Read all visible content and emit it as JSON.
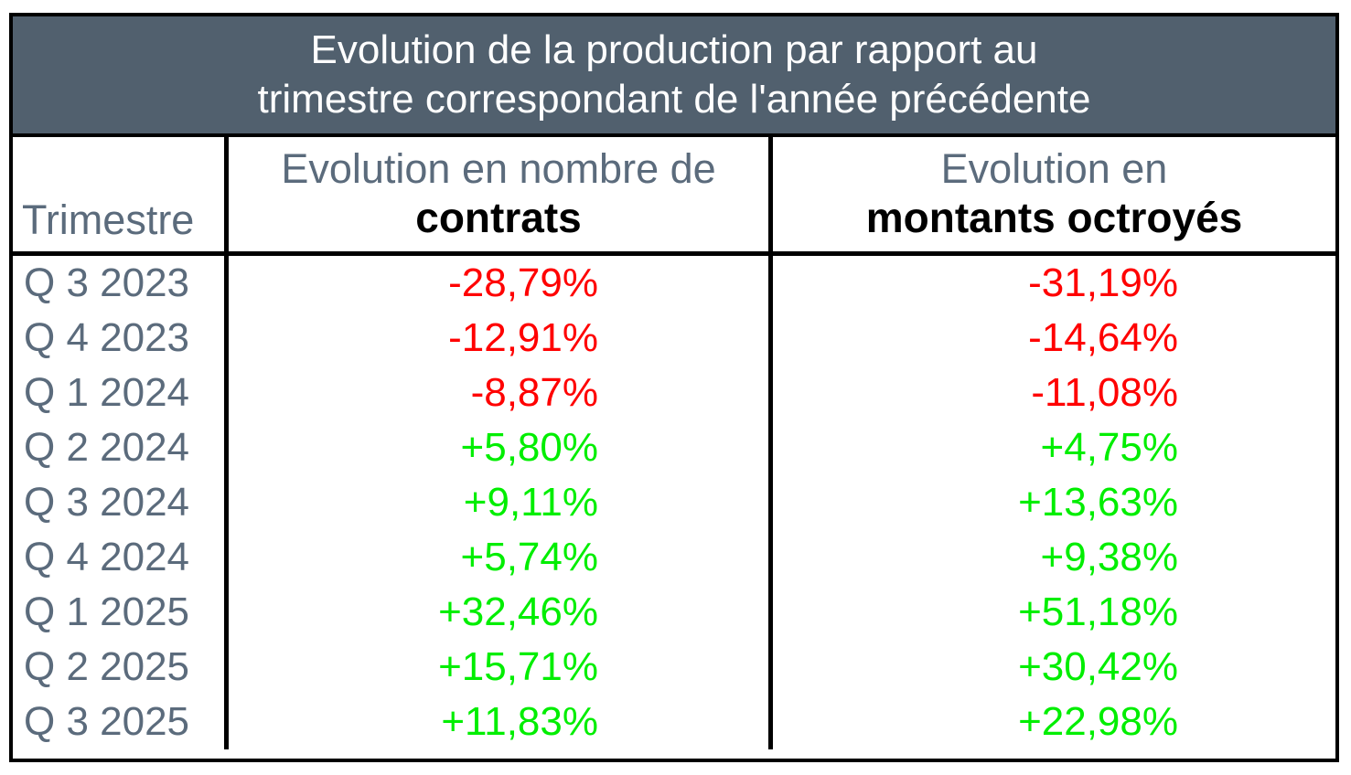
{
  "table": {
    "title_line1": "Evolution de la production par rapport au",
    "title_line2": "trimestre correspondant de l'année précédente",
    "header": {
      "col1": "Trimestre",
      "col2_line1": "Evolution en nombre de",
      "col2_line2": "contrats",
      "col3_line1": "Evolution en",
      "col3_line2": "montants octroyés"
    },
    "rows": [
      {
        "quarter": "Q 3 2023",
        "contracts": "-28,79%",
        "amounts": "-31,19%"
      },
      {
        "quarter": "Q 4 2023",
        "contracts": "-12,91%",
        "amounts": "-14,64%"
      },
      {
        "quarter": "Q 1 2024",
        "contracts": "-8,87%",
        "amounts": "-11,08%"
      },
      {
        "quarter": "Q 2 2024",
        "contracts": "+5,80%",
        "amounts": "+4,75%"
      },
      {
        "quarter": "Q 3 2024",
        "contracts": "+9,11%",
        "amounts": "+13,63%"
      },
      {
        "quarter": "Q 4 2024",
        "contracts": "+5,74%",
        "amounts": "+9,38%"
      },
      {
        "quarter": "Q 1 2025",
        "contracts": "+32,46%",
        "amounts": "+51,18%"
      },
      {
        "quarter": "Q 2 2025",
        "contracts": "+15,71%",
        "amounts": "+30,42%"
      },
      {
        "quarter": "Q 3 2025",
        "contracts": "+11,83%",
        "amounts": "+22,98%"
      }
    ],
    "colors": {
      "banner_bg": "#51606e",
      "banner_text": "#ffffff",
      "label_text": "#5b6b7c",
      "bold_text": "#000000",
      "negative": "#ff0000",
      "positive": "#00ee00",
      "border": "#000000"
    }
  },
  "chart_data": {
    "type": "table",
    "title": "Evolution de la production par rapport au trimestre correspondant de l'année précédente",
    "columns": [
      "Trimestre",
      "Evolution en nombre de contrats",
      "Evolution en montants octroyés"
    ],
    "rows": [
      [
        "Q 3 2023",
        "-28,79%",
        "-31,19%"
      ],
      [
        "Q 4 2023",
        "-12,91%",
        "-14,64%"
      ],
      [
        "Q 1 2024",
        "-8,87%",
        "-11,08%"
      ],
      [
        "Q 2 2024",
        "+5,80%",
        "+4,75%"
      ],
      [
        "Q 3 2024",
        "+9,11%",
        "+13,63%"
      ],
      [
        "Q 4 2024",
        "+5,74%",
        "+9,38%"
      ],
      [
        "Q 1 2025",
        "+32,46%",
        "+51,18%"
      ],
      [
        "Q 2 2025",
        "+15,71%",
        "+30,42%"
      ],
      [
        "Q 3 2025",
        "+11,83%",
        "+22,98%"
      ]
    ],
    "series": [
      {
        "name": "Evolution en nombre de contrats (%)",
        "values": [
          -28.79,
          -12.91,
          -8.87,
          5.8,
          9.11,
          5.74,
          32.46,
          15.71,
          11.83
        ]
      },
      {
        "name": "Evolution en montants octroyés (%)",
        "values": [
          -31.19,
          -14.64,
          -11.08,
          4.75,
          13.63,
          9.38,
          51.18,
          30.42,
          22.98
        ]
      }
    ],
    "categories": [
      "Q3 2023",
      "Q4 2023",
      "Q1 2024",
      "Q2 2024",
      "Q3 2024",
      "Q4 2024",
      "Q1 2025",
      "Q2 2025",
      "Q3 2025"
    ],
    "value_format": "percent, comma decimal separator, red = negative, green = positive"
  }
}
